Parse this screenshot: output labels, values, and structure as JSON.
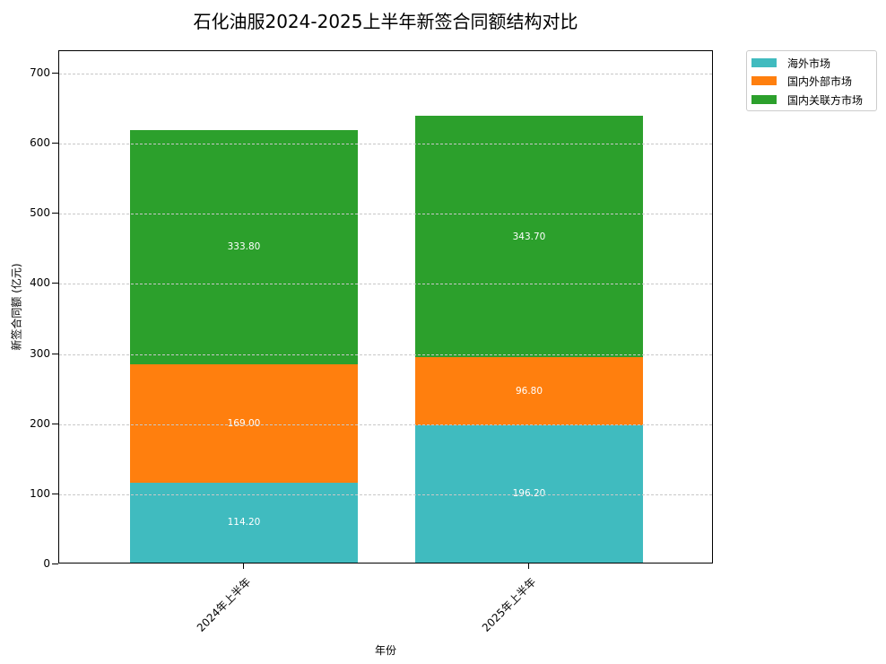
{
  "chart_data": {
    "type": "bar",
    "stacked": true,
    "title": "石化油服2024-2025上半年新签合同额结构对比",
    "xlabel": "年份",
    "ylabel": "新签合同额 (亿元)",
    "categories": [
      "2024年上半年",
      "2025年上半年"
    ],
    "series": [
      {
        "name": "海外市场",
        "color": "#40BBBF",
        "values": [
          114.2,
          196.2
        ],
        "labels": [
          "114.20",
          "196.20"
        ]
      },
      {
        "name": "国内外部市场",
        "color": "#FF7F0E",
        "values": [
          169.0,
          96.8
        ],
        "labels": [
          "169.00",
          "96.80"
        ]
      },
      {
        "name": "国内关联方市场",
        "color": "#2CA02C",
        "values": [
          333.8,
          343.7
        ],
        "labels": [
          "333.80",
          "343.70"
        ]
      }
    ],
    "totals": [
      617.0,
      636.7
    ],
    "ylim": [
      0,
      732
    ],
    "yticks": [
      "0",
      "100",
      "200",
      "300",
      "400",
      "500",
      "600",
      "700"
    ],
    "grid": "y-dashed",
    "legend_position": "outside-upper-right"
  }
}
